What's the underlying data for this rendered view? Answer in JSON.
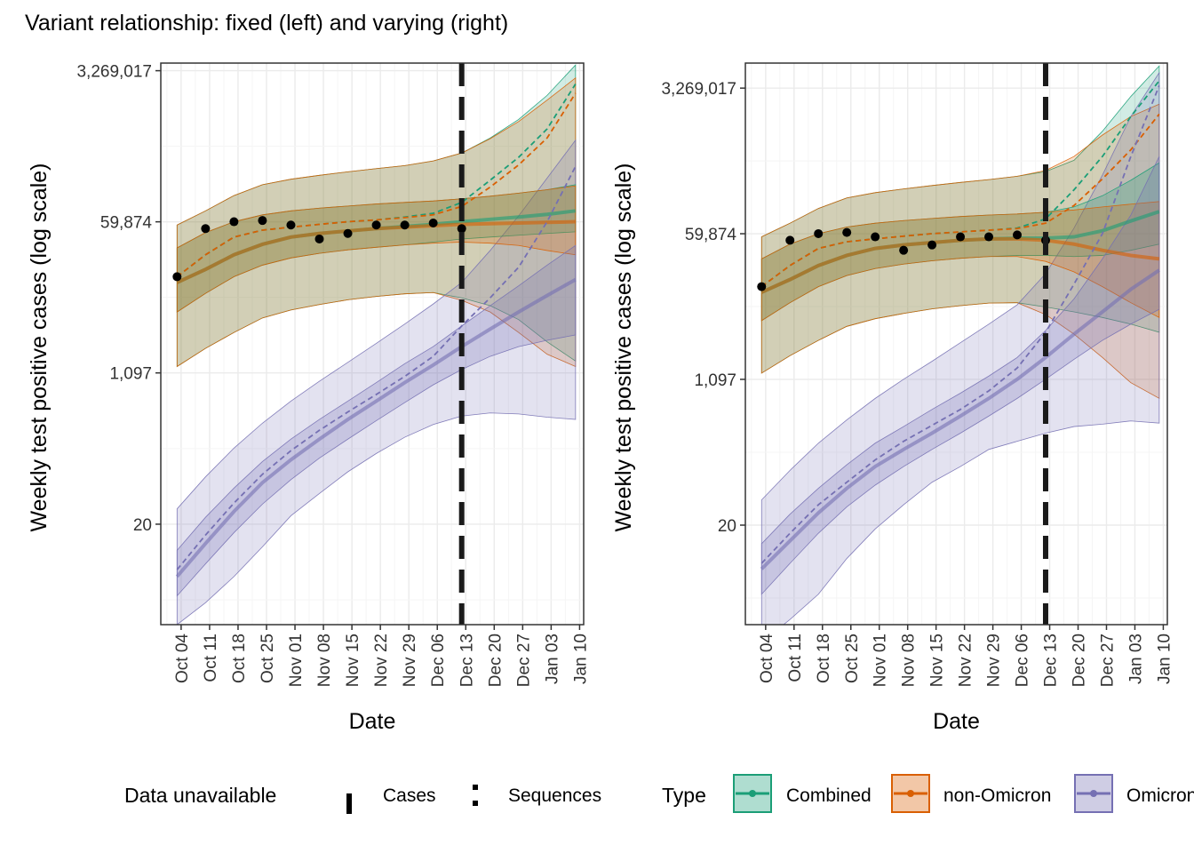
{
  "title": "Variant relationship: fixed (left) and varying (right)",
  "colors": {
    "combined": "#1b9e77",
    "non_omicron": "#d95f02",
    "omicron": "#7570b3",
    "points": "#000000",
    "vline": "#1a1a1a",
    "grid_major": "#ebebeb",
    "grid_minor": "#f5f5f5"
  },
  "legend": {
    "data_unavailable_title": "Data unavailable",
    "cases_label": "Cases",
    "sequences_label": "Sequences",
    "type_title": "Type",
    "items": [
      "Combined",
      "non-Omicron",
      "Omicron"
    ]
  },
  "chart_data": [
    {
      "type": "line",
      "panel": "left",
      "xlabel": "Date",
      "ylabel": "Weekly test positive cases (log scale)",
      "y_scale": "log",
      "y_ticks": [
        "20",
        "1,097",
        "59,874",
        "3,269,017"
      ],
      "y_tick_values": [
        20,
        1097,
        59874,
        3269017
      ],
      "ylim": [
        1.4,
        4000000
      ],
      "x_ticks": [
        "Oct 04",
        "Oct 11",
        "Oct 18",
        "Oct 25",
        "Nov 01",
        "Nov 08",
        "Nov 15",
        "Nov 22",
        "Nov 29",
        "Dec 06",
        "Dec 13",
        "Dec 20",
        "Dec 27",
        "Jan 03",
        "Jan 10"
      ],
      "xlim": [
        "2021-09-29",
        "2022-01-11"
      ],
      "data_unavailable_date": "2021-12-12",
      "series": [
        {
          "name": "Combined",
          "x": [
            "2021-10-03",
            "2021-10-10",
            "2021-10-17",
            "2021-10-24",
            "2021-10-31",
            "2021-11-07",
            "2021-11-14",
            "2021-11-21",
            "2021-11-28",
            "2021-12-05",
            "2021-12-12",
            "2021-12-19",
            "2021-12-26",
            "2022-01-02",
            "2022-01-09"
          ],
          "median": [
            12000,
            17000,
            25000,
            33000,
            40000,
            44000,
            47000,
            50000,
            53000,
            56000,
            60000,
            64000,
            68000,
            73000,
            80000
          ],
          "dashed": [
            14000,
            25000,
            40000,
            48000,
            52000,
            56000,
            60000,
            63000,
            68000,
            75000,
            100000,
            180000,
            330000,
            700000,
            2300000
          ],
          "inner_lo": [
            5500,
            9000,
            14000,
            19000,
            23000,
            26000,
            28500,
            30500,
            32500,
            35000,
            38000,
            40000,
            42000,
            44000,
            46000
          ],
          "inner_hi": [
            30000,
            45000,
            60000,
            72000,
            80000,
            86000,
            91000,
            96000,
            100000,
            104000,
            110000,
            118000,
            128000,
            140000,
            160000
          ],
          "outer_lo": [
            1300,
            2100,
            3200,
            4700,
            5800,
            6700,
            7600,
            8300,
            8900,
            9200,
            8000,
            6500,
            4500,
            2500,
            1500
          ],
          "outer_hi": [
            55000,
            80000,
            120000,
            160000,
            185000,
            205000,
            225000,
            245000,
            265000,
            300000,
            370000,
            550000,
            900000,
            1700000,
            3800000
          ]
        },
        {
          "name": "non-Omicron",
          "x": [
            "2021-10-03",
            "2021-10-10",
            "2021-10-17",
            "2021-10-24",
            "2021-10-31",
            "2021-11-07",
            "2021-11-14",
            "2021-11-21",
            "2021-11-28",
            "2021-12-05",
            "2021-12-12",
            "2021-12-19",
            "2021-12-26",
            "2022-01-02",
            "2022-01-09"
          ],
          "median": [
            12000,
            17000,
            25000,
            33000,
            40000,
            44000,
            47000,
            50000,
            52000,
            54000,
            56000,
            57000,
            58000,
            59000,
            60000
          ],
          "dashed": [
            14000,
            25000,
            40000,
            48000,
            52000,
            56000,
            60000,
            63000,
            67000,
            72000,
            90000,
            150000,
            270000,
            550000,
            1800000
          ],
          "inner_lo": [
            5500,
            9000,
            14000,
            19000,
            23000,
            26000,
            28500,
            30500,
            32500,
            34000,
            35000,
            34000,
            32000,
            28000,
            25000
          ],
          "inner_hi": [
            30000,
            45000,
            60000,
            72000,
            80000,
            86000,
            91000,
            96000,
            100000,
            104000,
            110000,
            118000,
            128000,
            140000,
            155000
          ],
          "outer_lo": [
            1300,
            2100,
            3200,
            4700,
            5800,
            6700,
            7600,
            8300,
            8900,
            9200,
            7500,
            5500,
            3200,
            1800,
            1300
          ],
          "outer_hi": [
            55000,
            80000,
            120000,
            160000,
            185000,
            205000,
            225000,
            245000,
            265000,
            300000,
            370000,
            540000,
            850000,
            1500000,
            2700000
          ]
        },
        {
          "name": "Omicron",
          "x": [
            "2021-10-03",
            "2021-10-10",
            "2021-10-17",
            "2021-10-24",
            "2021-10-31",
            "2021-11-07",
            "2021-11-14",
            "2021-11-21",
            "2021-11-28",
            "2021-12-05",
            "2021-12-12",
            "2021-12-19",
            "2021-12-26",
            "2022-01-02",
            "2022-01-09"
          ],
          "median": [
            5,
            12,
            28,
            60,
            110,
            190,
            320,
            520,
            850,
            1350,
            2200,
            3500,
            5500,
            8500,
            13000
          ],
          "dashed": [
            6,
            15,
            35,
            75,
            140,
            240,
            390,
            620,
            1000,
            1700,
            3800,
            8000,
            18000,
            60000,
            260000
          ],
          "inner_lo": [
            3,
            7,
            16,
            34,
            65,
            115,
            190,
            310,
            500,
            800,
            1200,
            1700,
            2200,
            2600,
            3000
          ],
          "inner_hi": [
            10,
            24,
            52,
            105,
            190,
            320,
            520,
            850,
            1400,
            2200,
            3800,
            6500,
            11000,
            19000,
            32000
          ],
          "outer_lo": [
            1.4,
            2.5,
            5,
            11,
            25,
            45,
            80,
            130,
            200,
            280,
            350,
            380,
            370,
            340,
            320
          ],
          "outer_hi": [
            30,
            70,
            150,
            290,
            520,
            880,
            1450,
            2400,
            4000,
            6800,
            12000,
            28000,
            70000,
            190000,
            520000
          ]
        }
      ],
      "points": {
        "x": [
          "2021-10-03",
          "2021-10-10",
          "2021-10-17",
          "2021-10-24",
          "2021-10-31",
          "2021-11-07",
          "2021-11-14",
          "2021-11-21",
          "2021-11-28",
          "2021-12-05",
          "2021-12-12"
        ],
        "y": [
          14000,
          50000,
          60000,
          62000,
          55000,
          38000,
          44000,
          55000,
          55000,
          58000,
          50000
        ]
      }
    },
    {
      "type": "line",
      "panel": "right",
      "xlabel": "Date",
      "ylabel": "Weekly test positive cases (log scale)",
      "y_scale": "log",
      "y_ticks": [
        "20",
        "1,097",
        "59,874",
        "3,269,017"
      ],
      "y_tick_values": [
        20,
        1097,
        59874,
        3269017
      ],
      "ylim": [
        1.3,
        6500000
      ],
      "x_ticks": [
        "Oct 04",
        "Oct 11",
        "Oct 18",
        "Oct 25",
        "Nov 01",
        "Nov 08",
        "Nov 15",
        "Nov 22",
        "Nov 29",
        "Dec 06",
        "Dec 13",
        "Dec 20",
        "Dec 27",
        "Jan 03",
        "Jan 10"
      ],
      "xlim": [
        "2021-09-29",
        "2022-01-11"
      ],
      "data_unavailable_date": "2021-12-12",
      "series": [
        {
          "name": "Combined",
          "x": [
            "2021-10-03",
            "2021-10-10",
            "2021-10-17",
            "2021-10-24",
            "2021-10-31",
            "2021-11-07",
            "2021-11-14",
            "2021-11-21",
            "2021-11-28",
            "2021-12-05",
            "2021-12-12",
            "2021-12-19",
            "2021-12-26",
            "2022-01-02",
            "2022-01-09"
          ],
          "median": [
            12000,
            17000,
            25000,
            33000,
            40000,
            44000,
            47000,
            50000,
            52000,
            53000,
            53000,
            55000,
            65000,
            85000,
            110000
          ],
          "dashed": [
            14000,
            25000,
            40000,
            48000,
            52000,
            56000,
            60000,
            63000,
            66000,
            70000,
            90000,
            200000,
            500000,
            1500000,
            4000000
          ],
          "inner_lo": [
            5500,
            9000,
            14000,
            19000,
            23000,
            26000,
            28500,
            30500,
            32000,
            33000,
            33000,
            32000,
            33000,
            38000,
            45000
          ],
          "inner_hi": [
            30000,
            45000,
            60000,
            72000,
            80000,
            86000,
            91000,
            96000,
            100000,
            103000,
            108000,
            125000,
            170000,
            260000,
            420000
          ],
          "outer_lo": [
            1300,
            2100,
            3200,
            4700,
            5800,
            6700,
            7600,
            8300,
            8900,
            9000,
            8000,
            7000,
            6000,
            5000,
            4000
          ],
          "outer_hi": [
            55000,
            80000,
            120000,
            160000,
            185000,
            205000,
            225000,
            245000,
            265000,
            290000,
            330000,
            450000,
            1000000,
            2600000,
            6000000
          ]
        },
        {
          "name": "non-Omicron",
          "x": [
            "2021-10-03",
            "2021-10-10",
            "2021-10-17",
            "2021-10-24",
            "2021-10-31",
            "2021-11-07",
            "2021-11-14",
            "2021-11-21",
            "2021-11-28",
            "2021-12-05",
            "2021-12-12",
            "2021-12-19",
            "2021-12-26",
            "2022-01-02",
            "2022-01-09"
          ],
          "median": [
            12000,
            17000,
            25000,
            33000,
            40000,
            44000,
            47000,
            50000,
            52000,
            52000,
            50000,
            45000,
            38000,
            33000,
            30000
          ],
          "dashed": [
            14000,
            25000,
            40000,
            48000,
            52000,
            56000,
            60000,
            63000,
            66000,
            69000,
            80000,
            130000,
            270000,
            600000,
            1600000
          ],
          "inner_lo": [
            5500,
            9000,
            14000,
            19000,
            23000,
            26000,
            28500,
            30500,
            32000,
            32000,
            28000,
            21000,
            14000,
            9000,
            6000
          ],
          "inner_hi": [
            30000,
            45000,
            60000,
            72000,
            80000,
            86000,
            91000,
            96000,
            100000,
            103000,
            108000,
            115000,
            125000,
            135000,
            145000
          ],
          "outer_lo": [
            1300,
            2100,
            3200,
            4700,
            5800,
            6700,
            7600,
            8300,
            8900,
            9000,
            6500,
            3800,
            2000,
            1000,
            650
          ],
          "outer_hi": [
            55000,
            80000,
            120000,
            160000,
            185000,
            205000,
            225000,
            245000,
            265000,
            290000,
            340000,
            500000,
            900000,
            1500000,
            2100000
          ]
        },
        {
          "name": "Omicron",
          "x": [
            "2021-10-03",
            "2021-10-10",
            "2021-10-17",
            "2021-10-24",
            "2021-10-31",
            "2021-11-07",
            "2021-11-14",
            "2021-11-21",
            "2021-11-28",
            "2021-12-05",
            "2021-12-12",
            "2021-12-19",
            "2021-12-26",
            "2022-01-02",
            "2022-01-09"
          ],
          "median": [
            6,
            13,
            28,
            55,
            100,
            160,
            250,
            400,
            650,
            1100,
            2000,
            3800,
            7000,
            13000,
            22000
          ],
          "dashed": [
            7,
            16,
            35,
            65,
            120,
            200,
            310,
            480,
            800,
            1500,
            4000,
            15000,
            60000,
            500000,
            3500000
          ],
          "inner_lo": [
            3,
            7,
            16,
            33,
            60,
            100,
            160,
            250,
            400,
            650,
            1100,
            1900,
            3200,
            5000,
            7500
          ],
          "inner_hi": [
            12,
            27,
            55,
            105,
            190,
            300,
            480,
            750,
            1200,
            2000,
            4200,
            10000,
            30000,
            100000,
            500000
          ],
          "outer_lo": [
            0.8,
            1.5,
            3,
            8,
            18,
            35,
            65,
            100,
            160,
            200,
            250,
            300,
            320,
            350,
            330
          ],
          "outer_hi": [
            40,
            90,
            190,
            360,
            650,
            1100,
            1800,
            3000,
            5000,
            8500,
            20000,
            70000,
            300000,
            1500000,
            5000000
          ]
        }
      ],
      "points": {
        "x": [
          "2021-10-03",
          "2021-10-10",
          "2021-10-17",
          "2021-10-24",
          "2021-10-31",
          "2021-11-07",
          "2021-11-14",
          "2021-11-21",
          "2021-11-28",
          "2021-12-05",
          "2021-12-12"
        ],
        "y": [
          14000,
          50000,
          60000,
          62000,
          55000,
          38000,
          44000,
          55000,
          55000,
          58000,
          50000
        ]
      }
    }
  ]
}
